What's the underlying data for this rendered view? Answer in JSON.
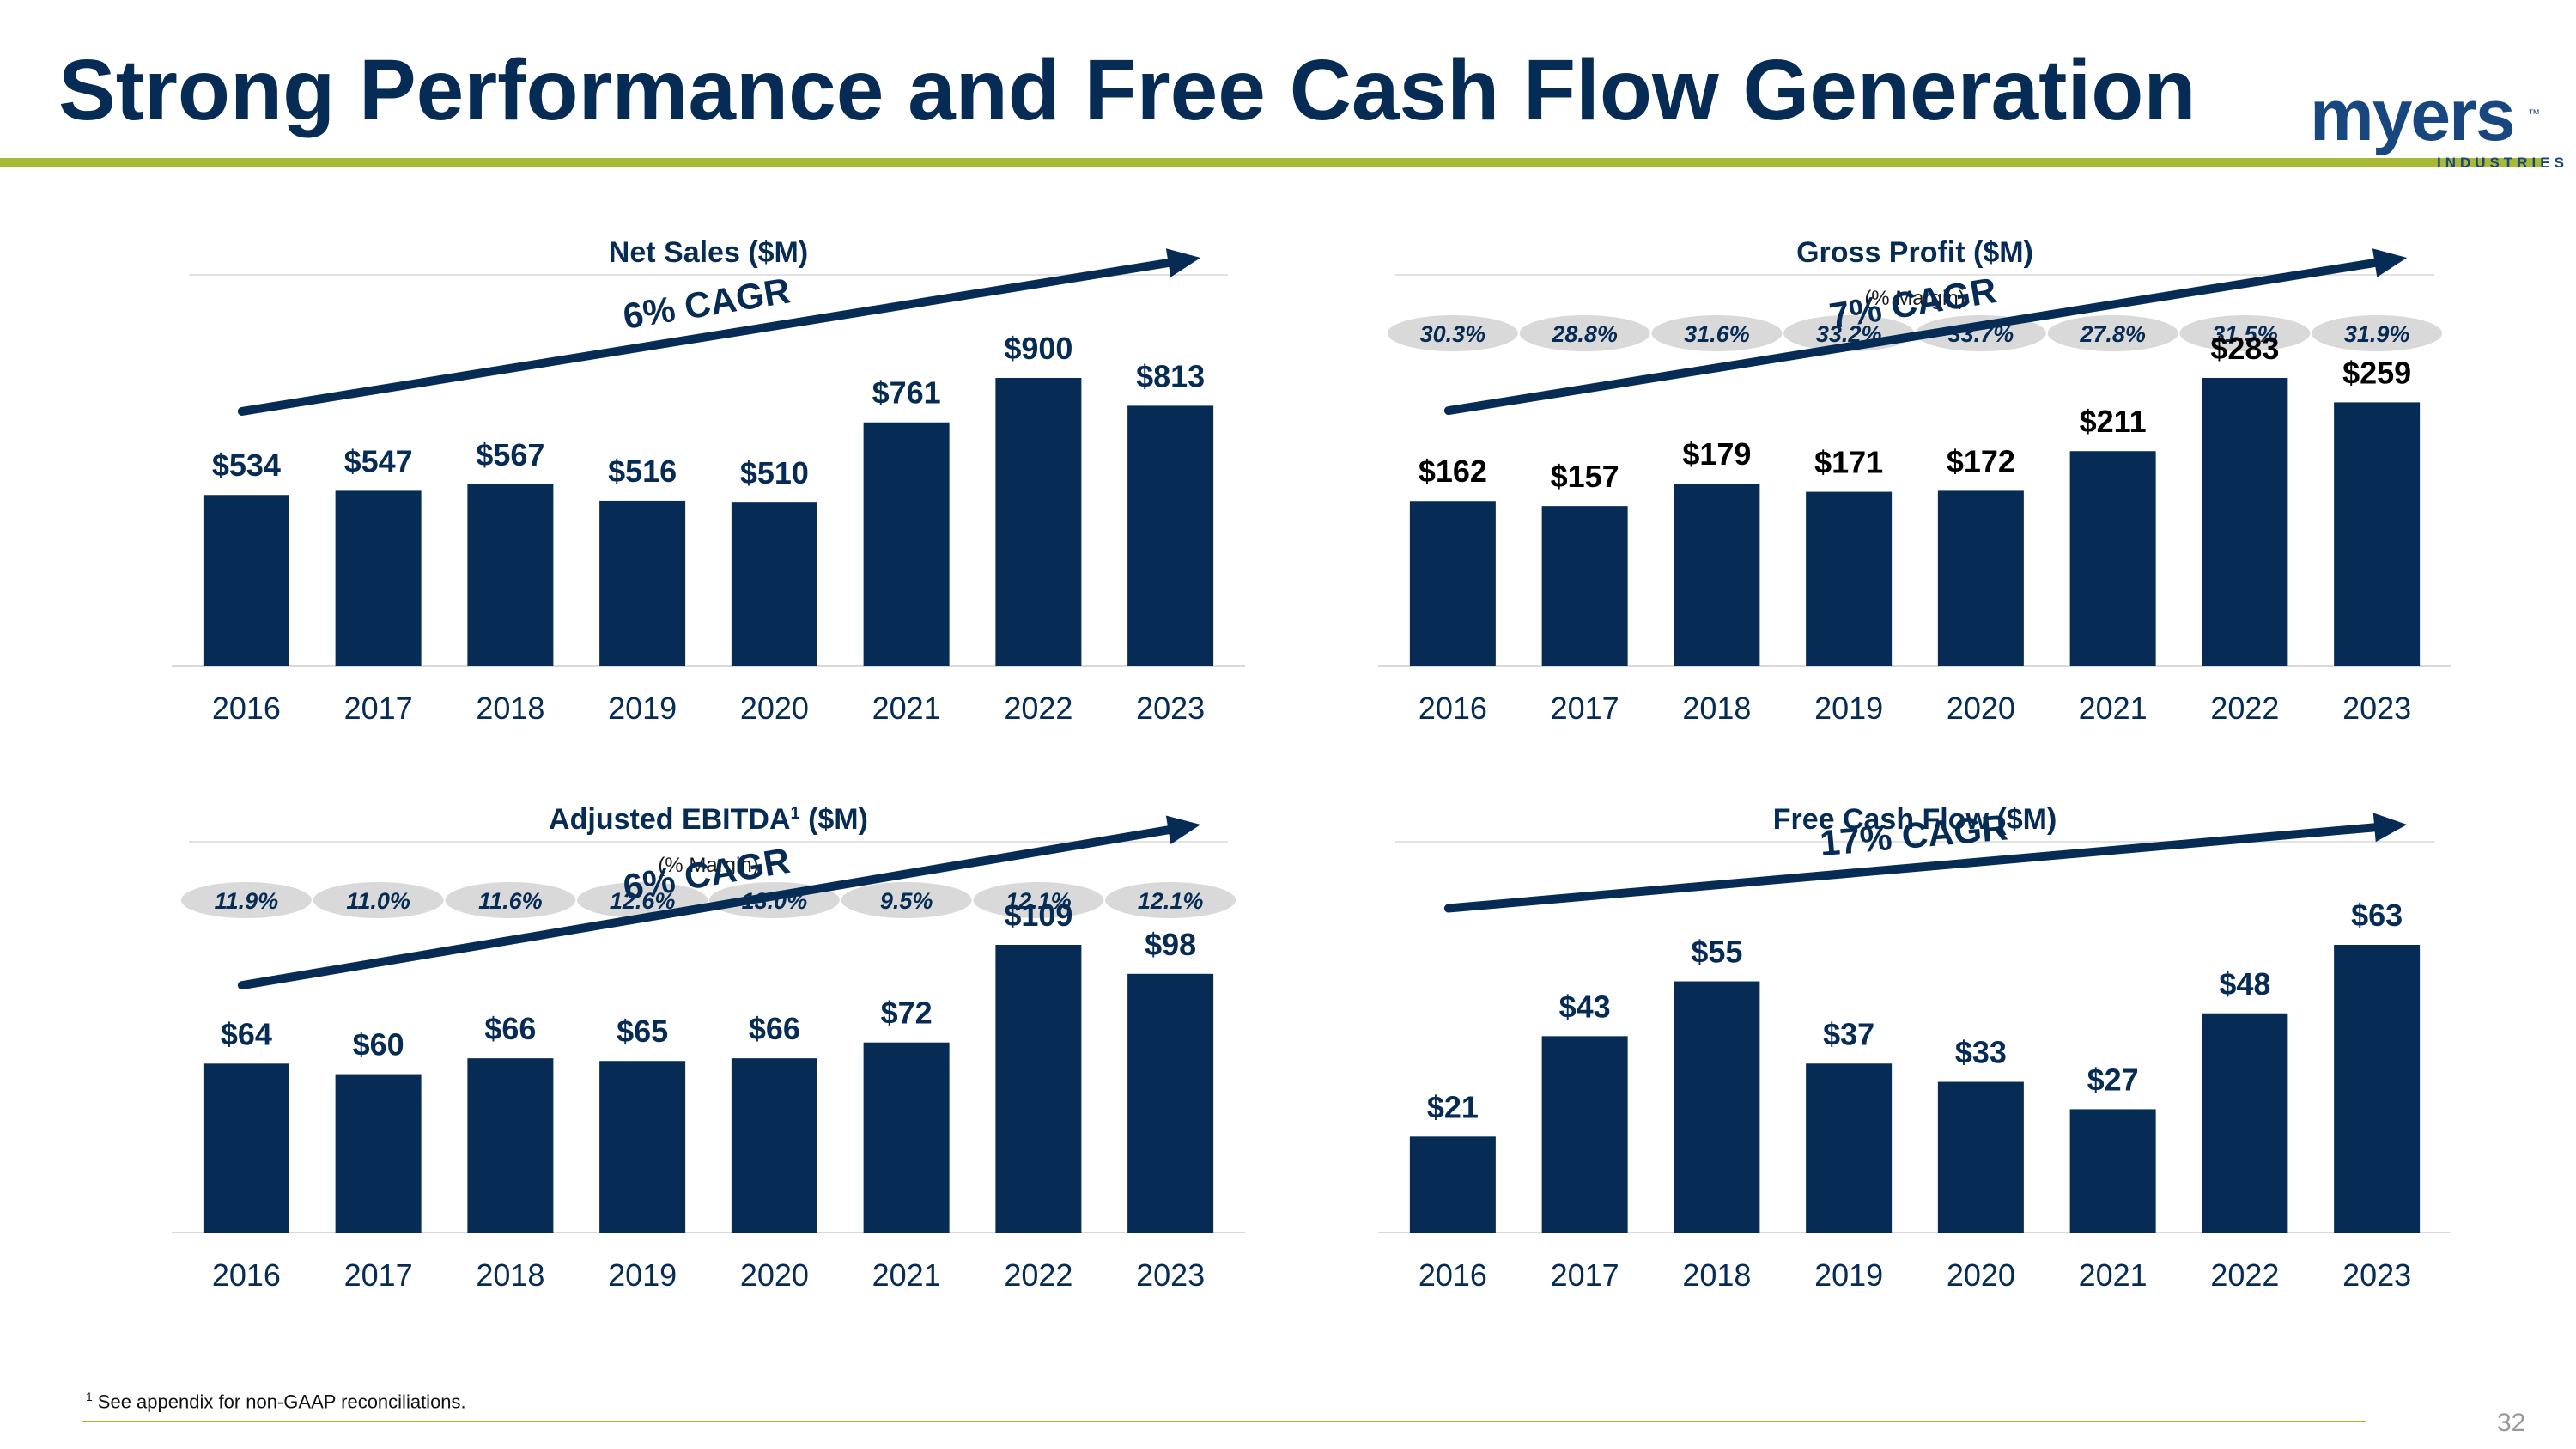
{
  "page": {
    "title": "Strong Performance and Free Cash Flow Generation",
    "logo_word": "myers",
    "logo_tm": "™",
    "logo_sub": "INDUSTRIES",
    "footnote_marker": "1",
    "footnote_text": "See appendix for non-GAAP reconciliations.",
    "page_number": "32"
  },
  "colors": {
    "navy": "#062c55",
    "accent_green": "#a8b936",
    "margin_pill": "#d9d9d9"
  },
  "chart_data": [
    {
      "type": "bar",
      "title": "Net Sales ($M)",
      "subtitle": "",
      "categories": [
        "2016",
        "2017",
        "2018",
        "2019",
        "2020",
        "2021",
        "2022",
        "2023"
      ],
      "values": [
        534,
        547,
        567,
        516,
        510,
        761,
        900,
        813
      ],
      "labels": [
        "$534",
        "$547",
        "$567",
        "$516",
        "$510",
        "$761",
        "$900",
        "$813"
      ],
      "cagr": "6% CAGR",
      "margins": [],
      "ylim": [
        0,
        900
      ],
      "label_color": "#062c55"
    },
    {
      "type": "bar",
      "title": "Gross Profit ($M)",
      "subtitle": "(% Margin)",
      "categories": [
        "2016",
        "2017",
        "2018",
        "2019",
        "2020",
        "2021",
        "2022",
        "2023"
      ],
      "values": [
        162,
        157,
        179,
        171,
        172,
        211,
        283,
        259
      ],
      "labels": [
        "$162",
        "$157",
        "$179",
        "$171",
        "$172",
        "$211",
        "$283",
        "$259"
      ],
      "cagr": "7% CAGR",
      "margins": [
        "30.3%",
        "28.8%",
        "31.6%",
        "33.2%",
        "33.7%",
        "27.8%",
        "31.5%",
        "31.9%"
      ],
      "ylim": [
        0,
        283
      ],
      "label_color": "#000000"
    },
    {
      "type": "bar",
      "title": "Adjusted EBITDA",
      "title_sup": "1",
      "title_suffix": " ($M)",
      "subtitle": "(% Margin)",
      "categories": [
        "2016",
        "2017",
        "2018",
        "2019",
        "2020",
        "2021",
        "2022",
        "2023"
      ],
      "values": [
        64,
        60,
        66,
        65,
        66,
        72,
        109,
        98
      ],
      "labels": [
        "$64",
        "$60",
        "$66",
        "$65",
        "$66",
        "$72",
        "$109",
        "$98"
      ],
      "cagr": "6% CAGR",
      "margins": [
        "11.9%",
        "11.0%",
        "11.6%",
        "12.6%",
        "13.0%",
        "9.5%",
        "12.1%",
        "12.1%"
      ],
      "ylim": [
        0,
        109
      ],
      "label_color": "#062c55"
    },
    {
      "type": "bar",
      "title": "Free Cash Flow ($M)",
      "subtitle": "",
      "categories": [
        "2016",
        "2017",
        "2018",
        "2019",
        "2020",
        "2021",
        "2022",
        "2023"
      ],
      "values": [
        21,
        43,
        55,
        37,
        33,
        27,
        48,
        63
      ],
      "labels": [
        "$21",
        "$43",
        "$55",
        "$37",
        "$33",
        "$27",
        "$48",
        "$63"
      ],
      "cagr": "17% CAGR",
      "margins": [],
      "ylim": [
        0,
        63
      ],
      "label_color": "#062c55"
    }
  ]
}
